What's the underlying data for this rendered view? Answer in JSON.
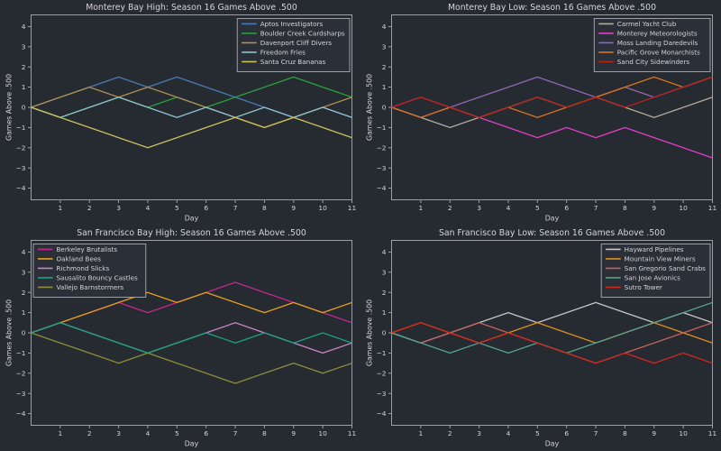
{
  "figure": {
    "background": "#262a31",
    "text_color": "#d3d6d9",
    "spine_color": "#9aa0a6",
    "legend_background": "#2b2f37",
    "legend_border": "#b9bec3"
  },
  "chart_data": [
    {
      "type": "line",
      "title": "Monterey Bay High: Season 16 Games Above .500",
      "xlabel": "Day",
      "ylabel": "Games Above .500",
      "xlim": [
        0,
        11
      ],
      "ylim": [
        -4.6,
        4.7
      ],
      "xticks": [
        1,
        2,
        3,
        4,
        5,
        6,
        7,
        8,
        9,
        10,
        11
      ],
      "yticks": [
        -4,
        -3,
        -2,
        -1,
        0,
        1,
        2,
        3,
        4
      ],
      "grid": false,
      "legend_position": "upper-right",
      "x": [
        0,
        1,
        2,
        3,
        4,
        5,
        6,
        7,
        8,
        9,
        10,
        11
      ],
      "series": [
        {
          "name": "Aptos Investigators",
          "color": "#4a7ab5",
          "values": [
            0,
            0.5,
            1,
            1.5,
            1,
            1.5,
            1,
            0.5,
            0,
            -0.5,
            0,
            -0.5
          ]
        },
        {
          "name": "Boulder Creek Cardsharps",
          "color": "#2aa23c",
          "values": [
            0,
            -0.5,
            0,
            0.5,
            0,
            0.5,
            0,
            0.5,
            1,
            1.5,
            1,
            0.5
          ]
        },
        {
          "name": "Davenport Cliff Divers",
          "color": "#b28f55",
          "values": [
            0,
            0.5,
            1,
            0.5,
            1,
            0.5,
            0,
            -0.5,
            -1,
            -0.5,
            0,
            0.5
          ]
        },
        {
          "name": "Freedom Fries",
          "color": "#8fc3cf",
          "values": [
            0,
            -0.5,
            0,
            0.5,
            0,
            -0.5,
            0,
            -0.5,
            0,
            -0.5,
            0,
            -0.5
          ]
        },
        {
          "name": "Santa Cruz Bananas",
          "color": "#cbc25e",
          "values": [
            0,
            -0.5,
            -1,
            -1.5,
            -2,
            -1.5,
            -1,
            -0.5,
            -1,
            -0.5,
            -1,
            -1.5
          ]
        }
      ]
    },
    {
      "type": "line",
      "title": "Monterey Bay Low: Season 16 Games Above .500",
      "xlabel": "Day",
      "ylabel": "Games Above .500",
      "xlim": [
        0,
        11
      ],
      "ylim": [
        -4.6,
        4.7
      ],
      "xticks": [
        1,
        2,
        3,
        4,
        5,
        6,
        7,
        8,
        9,
        10,
        11
      ],
      "yticks": [
        -4,
        -3,
        -2,
        -1,
        0,
        1,
        2,
        3,
        4
      ],
      "grid": false,
      "legend_position": "upper-right",
      "x": [
        0,
        1,
        2,
        3,
        4,
        5,
        6,
        7,
        8,
        9,
        10,
        11
      ],
      "series": [
        {
          "name": "Carmel Yacht Club",
          "color": "#b3ab9b",
          "values": [
            0,
            -0.5,
            -1,
            -0.5,
            0,
            0.5,
            0,
            0.5,
            0,
            -0.5,
            0,
            0.5
          ]
        },
        {
          "name": "Monterey Meteorologists",
          "color": "#e23ec8",
          "values": [
            0,
            0.5,
            0,
            -0.5,
            -1,
            -1.5,
            -1,
            -1.5,
            -1,
            -1.5,
            -2,
            -2.5
          ]
        },
        {
          "name": "Moss Landing Daredevils",
          "color": "#9267b4",
          "values": [
            0,
            -0.5,
            0,
            0.5,
            1,
            1.5,
            1,
            0.5,
            1,
            0.5,
            1,
            1.5
          ]
        },
        {
          "name": "Pacific Grove Monarchists",
          "color": "#d9731e",
          "values": [
            0,
            -0.5,
            0,
            -0.5,
            0,
            -0.5,
            0,
            0.5,
            1,
            1.5,
            1,
            1.5
          ]
        },
        {
          "name": "Sand City Sidewinders",
          "color": "#b5221a",
          "values": [
            0,
            0.5,
            0,
            -0.5,
            0,
            0.5,
            0,
            0.5,
            0,
            0.5,
            1,
            1.5
          ]
        }
      ]
    },
    {
      "type": "line",
      "title": "San Francisco Bay High: Season 16 Games Above .500",
      "xlabel": "Day",
      "ylabel": "Games Above .500",
      "xlim": [
        0,
        11
      ],
      "ylim": [
        -4.6,
        4.7
      ],
      "xticks": [
        1,
        2,
        3,
        4,
        5,
        6,
        7,
        8,
        9,
        10,
        11
      ],
      "yticks": [
        -4,
        -3,
        -2,
        -1,
        0,
        1,
        2,
        3,
        4
      ],
      "grid": false,
      "legend_position": "upper-left",
      "x": [
        0,
        1,
        2,
        3,
        4,
        5,
        6,
        7,
        8,
        9,
        10,
        11
      ],
      "series": [
        {
          "name": "Berkeley Brutalists",
          "color": "#c22790",
          "values": [
            0,
            0.5,
            1,
            1.5,
            1,
            1.5,
            2,
            2.5,
            2,
            1.5,
            1,
            0.5
          ]
        },
        {
          "name": "Oakland Bees",
          "color": "#e5a01d",
          "values": [
            0,
            0.5,
            1,
            1.5,
            2,
            1.5,
            2,
            1.5,
            1,
            1.5,
            1,
            1.5
          ]
        },
        {
          "name": "Richmond Slicks",
          "color": "#ca83c4",
          "values": [
            0,
            0.5,
            0,
            -0.5,
            -1,
            -0.5,
            0,
            0.5,
            0,
            -0.5,
            -1,
            -0.5
          ]
        },
        {
          "name": "Sausalito Bouncy Castles",
          "color": "#18a47e",
          "values": [
            0,
            0.5,
            0,
            -0.5,
            -1,
            -0.5,
            0,
            -0.5,
            0,
            -0.5,
            0,
            -0.5
          ]
        },
        {
          "name": "Vallejo Barnstormers",
          "color": "#8b8d3a",
          "values": [
            0,
            -0.5,
            -1,
            -1.5,
            -1,
            -1.5,
            -2,
            -2.5,
            -2,
            -1.5,
            -2,
            -1.5
          ]
        }
      ]
    },
    {
      "type": "line",
      "title": "San Francisco Bay Low: Season 16 Games Above .500",
      "xlabel": "Day",
      "ylabel": "Games Above .500",
      "xlim": [
        0,
        11
      ],
      "ylim": [
        -4.6,
        4.7
      ],
      "xticks": [
        1,
        2,
        3,
        4,
        5,
        6,
        7,
        8,
        9,
        10,
        11
      ],
      "yticks": [
        -4,
        -3,
        -2,
        -1,
        0,
        1,
        2,
        3,
        4
      ],
      "grid": false,
      "legend_position": "upper-right",
      "x": [
        0,
        1,
        2,
        3,
        4,
        5,
        6,
        7,
        8,
        9,
        10,
        11
      ],
      "series": [
        {
          "name": "Hayward Pipelines",
          "color": "#c3c7c7",
          "values": [
            0,
            -0.5,
            0,
            0.5,
            1,
            0.5,
            1,
            1.5,
            1,
            0.5,
            1,
            0.5
          ]
        },
        {
          "name": "Mountain View Miners",
          "color": "#df9018",
          "values": [
            0,
            0.5,
            0,
            -0.5,
            0,
            0.5,
            0,
            -0.5,
            0,
            0.5,
            0,
            -0.5
          ]
        },
        {
          "name": "San Gregorio Sand Crabs",
          "color": "#c4625c",
          "values": [
            0,
            -0.5,
            0,
            0.5,
            0,
            -0.5,
            -1,
            -1.5,
            -1,
            -0.5,
            0,
            0.5
          ]
        },
        {
          "name": "San Jose Avionics",
          "color": "#55a38c",
          "values": [
            0,
            -0.5,
            -1,
            -0.5,
            -1,
            -0.5,
            -1,
            -0.5,
            0,
            0.5,
            1,
            1.5
          ]
        },
        {
          "name": "Sutro Tower",
          "color": "#d0281c",
          "values": [
            0,
            0.5,
            0,
            -0.5,
            0,
            -0.5,
            -1,
            -1.5,
            -1,
            -1.5,
            -1,
            -1.5
          ]
        }
      ]
    }
  ]
}
